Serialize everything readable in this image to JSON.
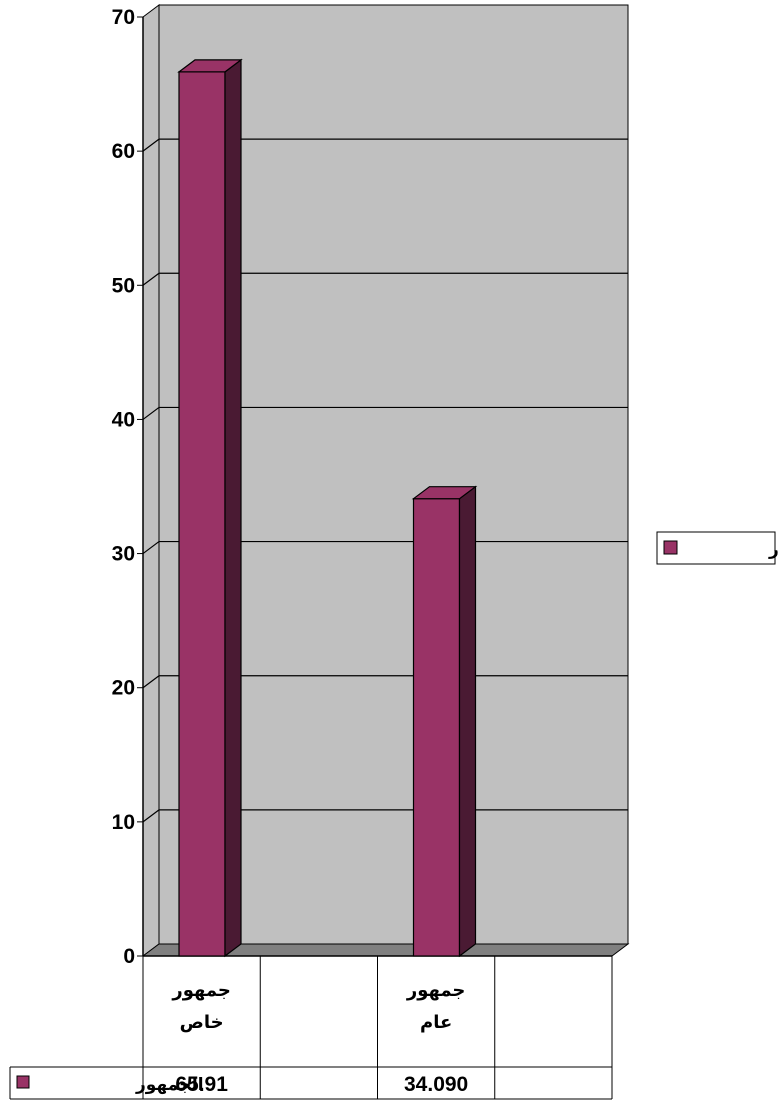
{
  "chart_data": {
    "type": "bar",
    "categories": [
      [
        "جمهور",
        "خاص"
      ],
      "",
      [
        "جمهور",
        "عام"
      ],
      ""
    ],
    "series": [
      {
        "name": "الجمهور",
        "values": [
          65.91,
          null,
          34.09,
          null
        ],
        "labels": [
          "65.91",
          "",
          "34.090",
          ""
        ],
        "color": "#993366",
        "side_color": "#4a1a33",
        "top_color": "#993366"
      }
    ],
    "ylim": [
      0,
      70
    ],
    "yticks": [
      0,
      10,
      20,
      30,
      40,
      50,
      60,
      70
    ],
    "grid": true,
    "legend": "right",
    "data_table": true,
    "colors": {
      "plot_bg": "#c0c0c0",
      "floor": "#808080",
      "gridline": "#000000"
    }
  }
}
